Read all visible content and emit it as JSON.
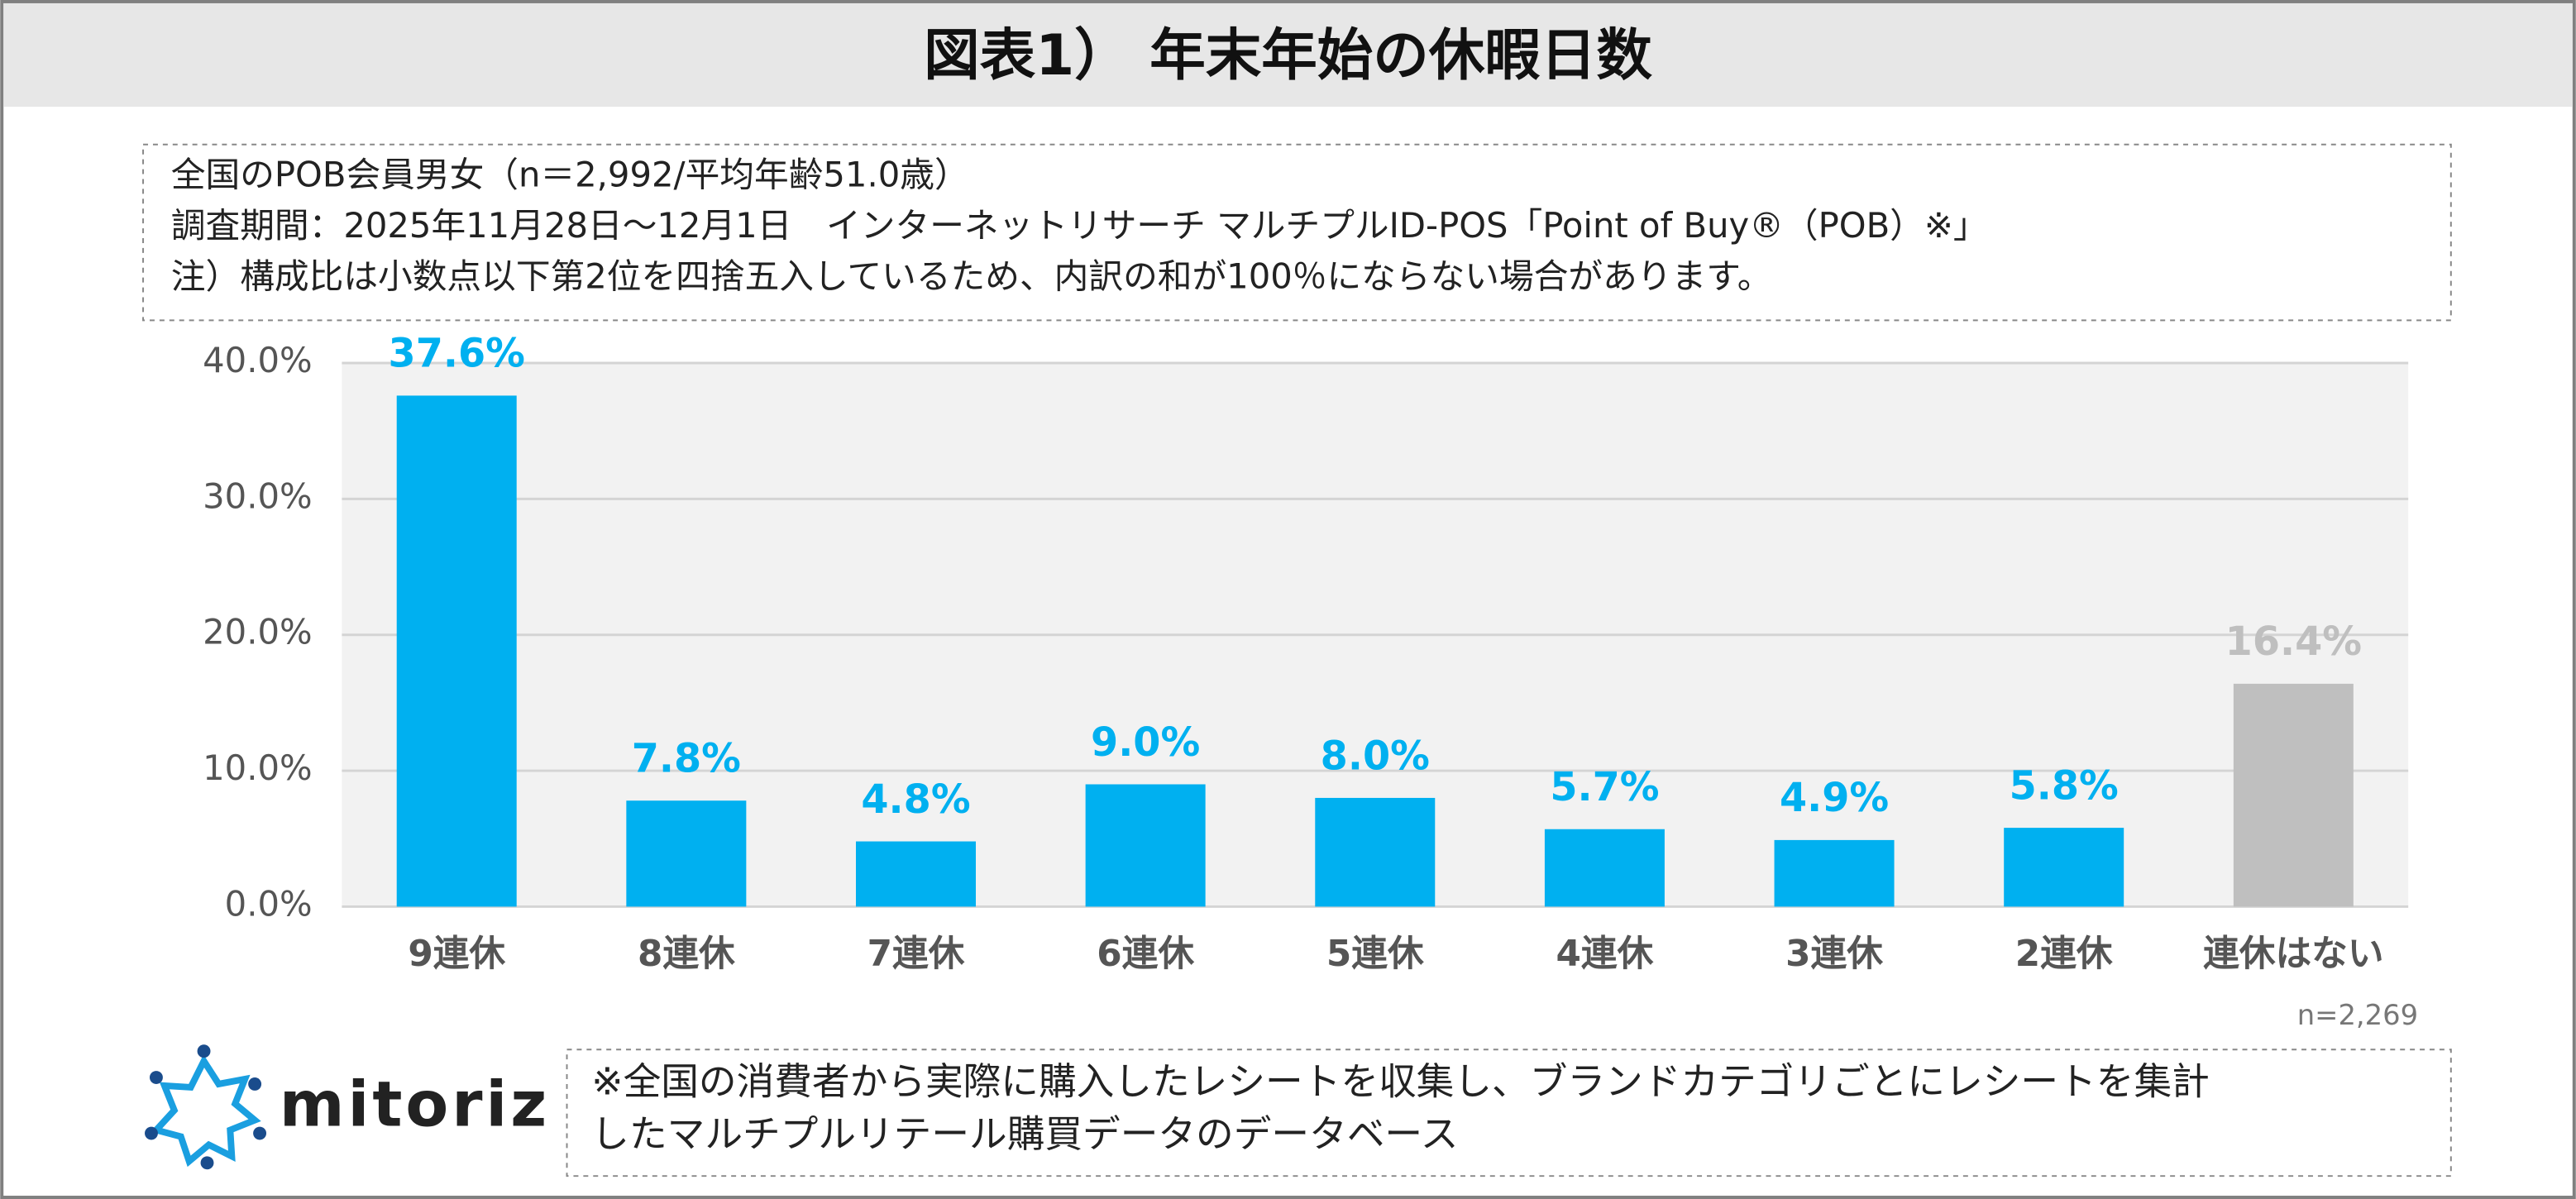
{
  "chart_data": {
    "type": "bar",
    "title": "図表1） 年末年始の休暇日数",
    "notes": [
      "全国のPOB会員男女（n＝2,992/平均年齢51.0歳）",
      "調査期間：2025年11月28日～12月1日　インターネットリサーチ マルチプルID-POS「Point of Buy®（POB）※」",
      "注）構成比は小数点以下第2位を四捨五入しているため、内訳の和が100％にならない場合があります。"
    ],
    "categories": [
      "9連休",
      "8連休",
      "7連休",
      "6連休",
      "5連休",
      "4連休",
      "3連休",
      "2連休",
      "連休はない"
    ],
    "values": [
      37.6,
      7.8,
      4.8,
      9.0,
      8.0,
      5.7,
      4.9,
      5.8,
      16.4
    ],
    "value_labels": [
      "37.6%",
      "7.8%",
      "4.8%",
      "9.0%",
      "8.0%",
      "5.7%",
      "4.9%",
      "5.8%",
      "16.4%"
    ],
    "colors": [
      "#00b0f0",
      "#00b0f0",
      "#00b0f0",
      "#00b0f0",
      "#00b0f0",
      "#00b0f0",
      "#00b0f0",
      "#00b0f0",
      "#bfbfbf"
    ],
    "ylim": [
      0,
      40
    ],
    "yticks": [
      {
        "value": 0,
        "label": "0.0%"
      },
      {
        "value": 10,
        "label": "10.0%"
      },
      {
        "value": 20,
        "label": "20.0%"
      },
      {
        "value": 30,
        "label": "30.0%"
      },
      {
        "value": 40,
        "label": "40.0%"
      }
    ],
    "grid": true,
    "sample_note": "n=2,269",
    "logo": "mitoriz",
    "footnote": [
      "※全国の消費者から実際に購入したレシートを収集し、ブランドカテゴリごとにレシートを集計",
      "したマルチプルリテール購買データのデータベース"
    ]
  }
}
